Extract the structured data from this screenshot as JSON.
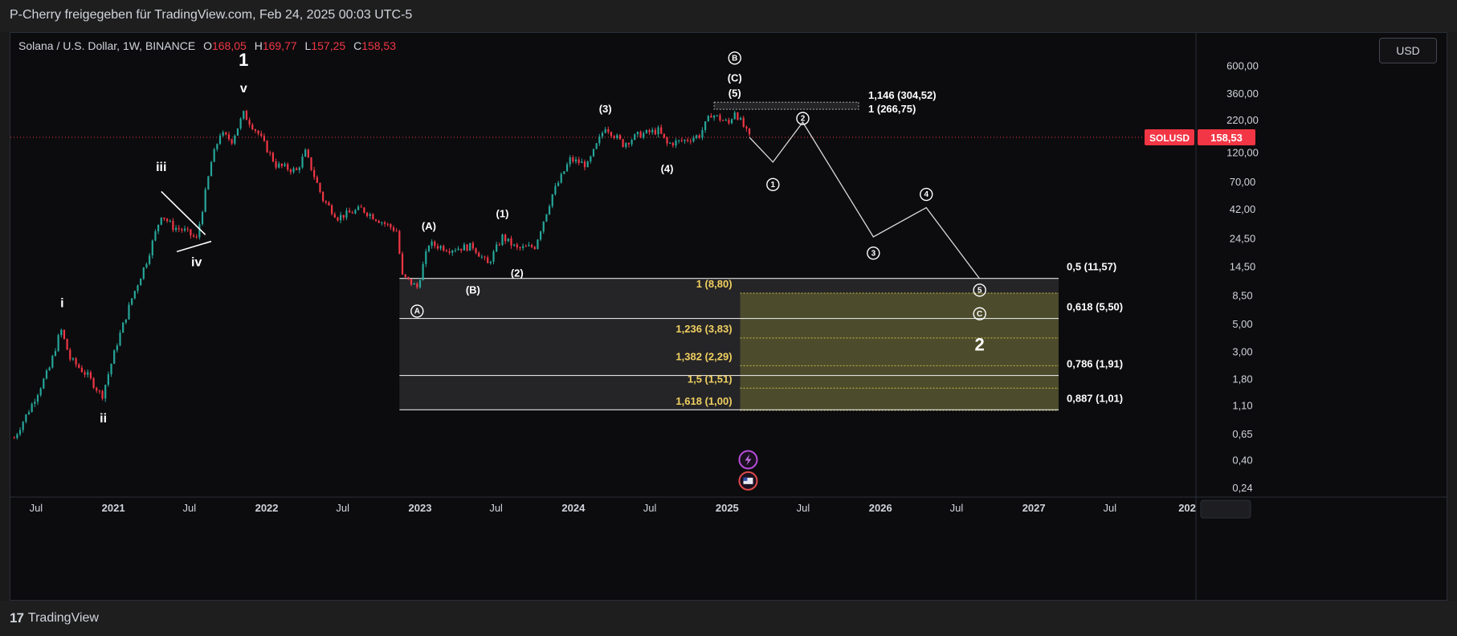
{
  "header": {
    "publisher": "P-Cherry freigegeben für TradingView.com, Feb 24, 2025 00:03 UTC-5"
  },
  "legend": {
    "symbol": "Solana / U.S. Dollar, 1W, BINANCE",
    "o_label": "O",
    "o_value": "168,05",
    "h_label": "H",
    "h_value": "169,77",
    "l_label": "L",
    "l_value": "157,25",
    "c_label": "C",
    "c_value": "158,53"
  },
  "currency_button": "USD",
  "footer": {
    "brand": "TradingView",
    "logo_mark": "17"
  },
  "price_tag": {
    "symbol": "SOLUSD",
    "value": "158,53"
  },
  "colors": {
    "up": "#26a69a",
    "down": "#f23645",
    "fib_zone": "#5a5a2e",
    "box": "#3a3a3e",
    "tag": "#f23645"
  },
  "chart_data": {
    "type": "candlestick",
    "y_scale": "log",
    "ylim": [
      0.2,
      1100
    ],
    "xlim": [
      "2020-05-01",
      "2028-01-20"
    ],
    "y_ticks": [
      {
        "label": "600,00",
        "v": 600
      },
      {
        "label": "360,00",
        "v": 360
      },
      {
        "label": "220,00",
        "v": 220
      },
      {
        "label": "120,00",
        "v": 120
      },
      {
        "label": "70,00",
        "v": 70
      },
      {
        "label": "42,00",
        "v": 42
      },
      {
        "label": "24,50",
        "v": 24.5
      },
      {
        "label": "14,50",
        "v": 14.5
      },
      {
        "label": "8,50",
        "v": 8.5
      },
      {
        "label": "5,00",
        "v": 5
      },
      {
        "label": "3,00",
        "v": 3
      },
      {
        "label": "1,80",
        "v": 1.8
      },
      {
        "label": "1,10",
        "v": 1.1
      },
      {
        "label": "0,65",
        "v": 0.65
      },
      {
        "label": "0,40",
        "v": 0.4
      },
      {
        "label": "0,24",
        "v": 0.24
      }
    ],
    "x_ticks": [
      {
        "label": "Jul",
        "d": "2020-07-01",
        "bold": false
      },
      {
        "label": "2021",
        "d": "2021-01-01",
        "bold": true
      },
      {
        "label": "Jul",
        "d": "2021-07-01",
        "bold": false
      },
      {
        "label": "2022",
        "d": "2022-01-01",
        "bold": true
      },
      {
        "label": "Jul",
        "d": "2022-07-01",
        "bold": false
      },
      {
        "label": "2023",
        "d": "2023-01-01",
        "bold": true
      },
      {
        "label": "Jul",
        "d": "2023-07-01",
        "bold": false
      },
      {
        "label": "2024",
        "d": "2024-01-01",
        "bold": true
      },
      {
        "label": "Jul",
        "d": "2024-07-01",
        "bold": false
      },
      {
        "label": "2025",
        "d": "2025-01-01",
        "bold": true
      },
      {
        "label": "Jul",
        "d": "2025-07-01",
        "bold": false
      },
      {
        "label": "2026",
        "d": "2026-01-01",
        "bold": true
      },
      {
        "label": "Jul",
        "d": "2026-07-01",
        "bold": false
      },
      {
        "label": "2027",
        "d": "2027-01-01",
        "bold": true
      },
      {
        "label": "Jul",
        "d": "2027-07-01",
        "bold": false
      },
      {
        "label": "202",
        "d": "2028-01-01",
        "bold": true
      }
    ],
    "price_path": [
      [
        "2020-05-10",
        0.6
      ],
      [
        "2020-06-20",
        1.1
      ],
      [
        "2020-08-02",
        2.2
      ],
      [
        "2020-08-29",
        4.5
      ],
      [
        "2020-09-20",
        2.6
      ],
      [
        "2020-11-01",
        1.9
      ],
      [
        "2020-12-05",
        1.3
      ],
      [
        "2021-01-10",
        3.5
      ],
      [
        "2021-02-14",
        8.0
      ],
      [
        "2021-03-21",
        16.0
      ],
      [
        "2021-04-25",
        38.0
      ],
      [
        "2021-05-23",
        30.0
      ],
      [
        "2021-06-20",
        28.0
      ],
      [
        "2021-07-18",
        24.0
      ],
      [
        "2021-08-22",
        100.0
      ],
      [
        "2021-09-12",
        170.0
      ],
      [
        "2021-10-10",
        150.0
      ],
      [
        "2021-11-07",
        245.0
      ],
      [
        "2021-12-12",
        170.0
      ],
      [
        "2022-01-23",
        95.0
      ],
      [
        "2022-03-13",
        85.0
      ],
      [
        "2022-04-03",
        120.0
      ],
      [
        "2022-05-15",
        50.0
      ],
      [
        "2022-06-19",
        36.0
      ],
      [
        "2022-08-14",
        42.0
      ],
      [
        "2022-10-09",
        32.0
      ],
      [
        "2022-11-06",
        28.0
      ],
      [
        "2022-11-20",
        12.0
      ],
      [
        "2022-12-25",
        9.8
      ],
      [
        "2023-01-22",
        22.0
      ],
      [
        "2023-03-12",
        20.0
      ],
      [
        "2023-05-07",
        21.0
      ],
      [
        "2023-06-11",
        15.0
      ],
      [
        "2023-07-16",
        25.0
      ],
      [
        "2023-08-20",
        20.0
      ],
      [
        "2023-10-01",
        21.0
      ],
      [
        "2023-11-12",
        55.0
      ],
      [
        "2023-12-24",
        105.0
      ],
      [
        "2024-02-04",
        95.0
      ],
      [
        "2024-03-17",
        195.0
      ],
      [
        "2024-04-28",
        140.0
      ],
      [
        "2024-06-02",
        165.0
      ],
      [
        "2024-07-21",
        180.0
      ],
      [
        "2024-08-11",
        140.0
      ],
      [
        "2024-09-22",
        150.0
      ],
      [
        "2024-10-27",
        165.0
      ],
      [
        "2024-11-24",
        245.0
      ],
      [
        "2025-01-05",
        205.0
      ],
      [
        "2025-01-19",
        260.0
      ],
      [
        "2025-02-23",
        158.53
      ]
    ],
    "projection": [
      [
        "2025-02-23",
        158.53
      ],
      [
        "2025-04-20",
        100
      ],
      [
        "2025-06-30",
        210
      ],
      [
        "2025-12-15",
        25
      ],
      [
        "2026-04-20",
        43
      ],
      [
        "2026-08-25",
        11.5
      ]
    ],
    "horizontal_price": 158.53,
    "retracement_box": {
      "start": "2022-11-13",
      "end": "2027-03-01",
      "levels": [
        {
          "ratio": "0,5",
          "value": 11.57,
          "label": "0,5 (11,57)"
        },
        {
          "ratio": "0,618",
          "value": 5.5,
          "label": "0,618 (5,50)"
        },
        {
          "ratio": "0,786",
          "value": 1.91,
          "label": "0,786 (1,91)"
        },
        {
          "ratio": "0,887",
          "value": 1.01,
          "label": "0,887 (1,01)"
        }
      ]
    },
    "extension_zone": {
      "start": "2025-02-01",
      "end": "2027-03-01",
      "top": 8.8,
      "bottom": 1.0,
      "levels": [
        {
          "label": "1 (8,80)",
          "value": 8.8
        },
        {
          "label": "1,236 (3,83)",
          "value": 3.83
        },
        {
          "label": "1,382 (2,29)",
          "value": 2.29
        },
        {
          "label": "1,5 (1,51)",
          "value": 1.51
        },
        {
          "label": "1,618 (1,00)",
          "value": 1.0
        }
      ]
    },
    "top_extension": {
      "start": "2024-12-01",
      "end": "2025-11-10",
      "levels": [
        {
          "label": "1,146 (304,52)",
          "value": 304.52
        },
        {
          "label": "1 (266,75)",
          "value": 266.75
        }
      ]
    },
    "wave_labels": [
      {
        "text": "1",
        "d": "2021-11-07",
        "v": 650,
        "size": 22,
        "bold": true
      },
      {
        "text": "v",
        "d": "2021-11-07",
        "v": 390,
        "size": 16
      },
      {
        "text": "i",
        "d": "2020-09-01",
        "v": 7.2,
        "size": 16
      },
      {
        "text": "ii",
        "d": "2020-12-08",
        "v": 0.85,
        "size": 16
      },
      {
        "text": "iii",
        "d": "2021-04-25",
        "v": 90,
        "size": 16
      },
      {
        "text": "iv",
        "d": "2021-07-18",
        "v": 15.5,
        "size": 16
      },
      {
        "text": "(A)",
        "d": "2023-01-22",
        "v": 30,
        "size": 13
      },
      {
        "text": "(B)",
        "d": "2023-05-07",
        "v": 9.2,
        "size": 13
      },
      {
        "text": "(1)",
        "d": "2023-07-16",
        "v": 38,
        "size": 13
      },
      {
        "text": "(2)",
        "d": "2023-08-20",
        "v": 12.6,
        "size": 13
      },
      {
        "text": "(3)",
        "d": "2024-03-17",
        "v": 265,
        "size": 13
      },
      {
        "text": "(4)",
        "d": "2024-08-11",
        "v": 87,
        "size": 13
      },
      {
        "text": "(5)",
        "d": "2025-01-19",
        "v": 355,
        "size": 13
      },
      {
        "text": "(C)",
        "d": "2025-01-19",
        "v": 470,
        "size": 13
      },
      {
        "text": "2",
        "d": "2026-08-25",
        "v": 3.3,
        "size": 22,
        "bold": true
      }
    ],
    "circled_labels": [
      {
        "text": "B",
        "d": "2025-01-19",
        "v": 690
      },
      {
        "text": "A",
        "d": "2022-12-25",
        "v": 6.3
      },
      {
        "text": "1",
        "d": "2025-04-20",
        "v": 66
      },
      {
        "text": "2",
        "d": "2025-06-30",
        "v": 225
      },
      {
        "text": "3",
        "d": "2025-12-15",
        "v": 18.5
      },
      {
        "text": "4",
        "d": "2026-04-20",
        "v": 55
      },
      {
        "text": "5",
        "d": "2026-08-25",
        "v": 9.3
      },
      {
        "text": "C",
        "d": "2026-08-25",
        "v": 6.0
      }
    ],
    "triangle_lines": [
      [
        [
          "2021-04-25",
          58
        ],
        [
          "2021-08-08",
          26
        ]
      ],
      [
        [
          "2021-06-01",
          19
        ],
        [
          "2021-08-22",
          23
        ]
      ]
    ],
    "event_icons": [
      {
        "name": "lightning-icon",
        "d": "2025-02-20",
        "v": 0.4
      },
      {
        "name": "flag-icon",
        "d": "2025-02-20",
        "v": 0.27
      }
    ]
  }
}
